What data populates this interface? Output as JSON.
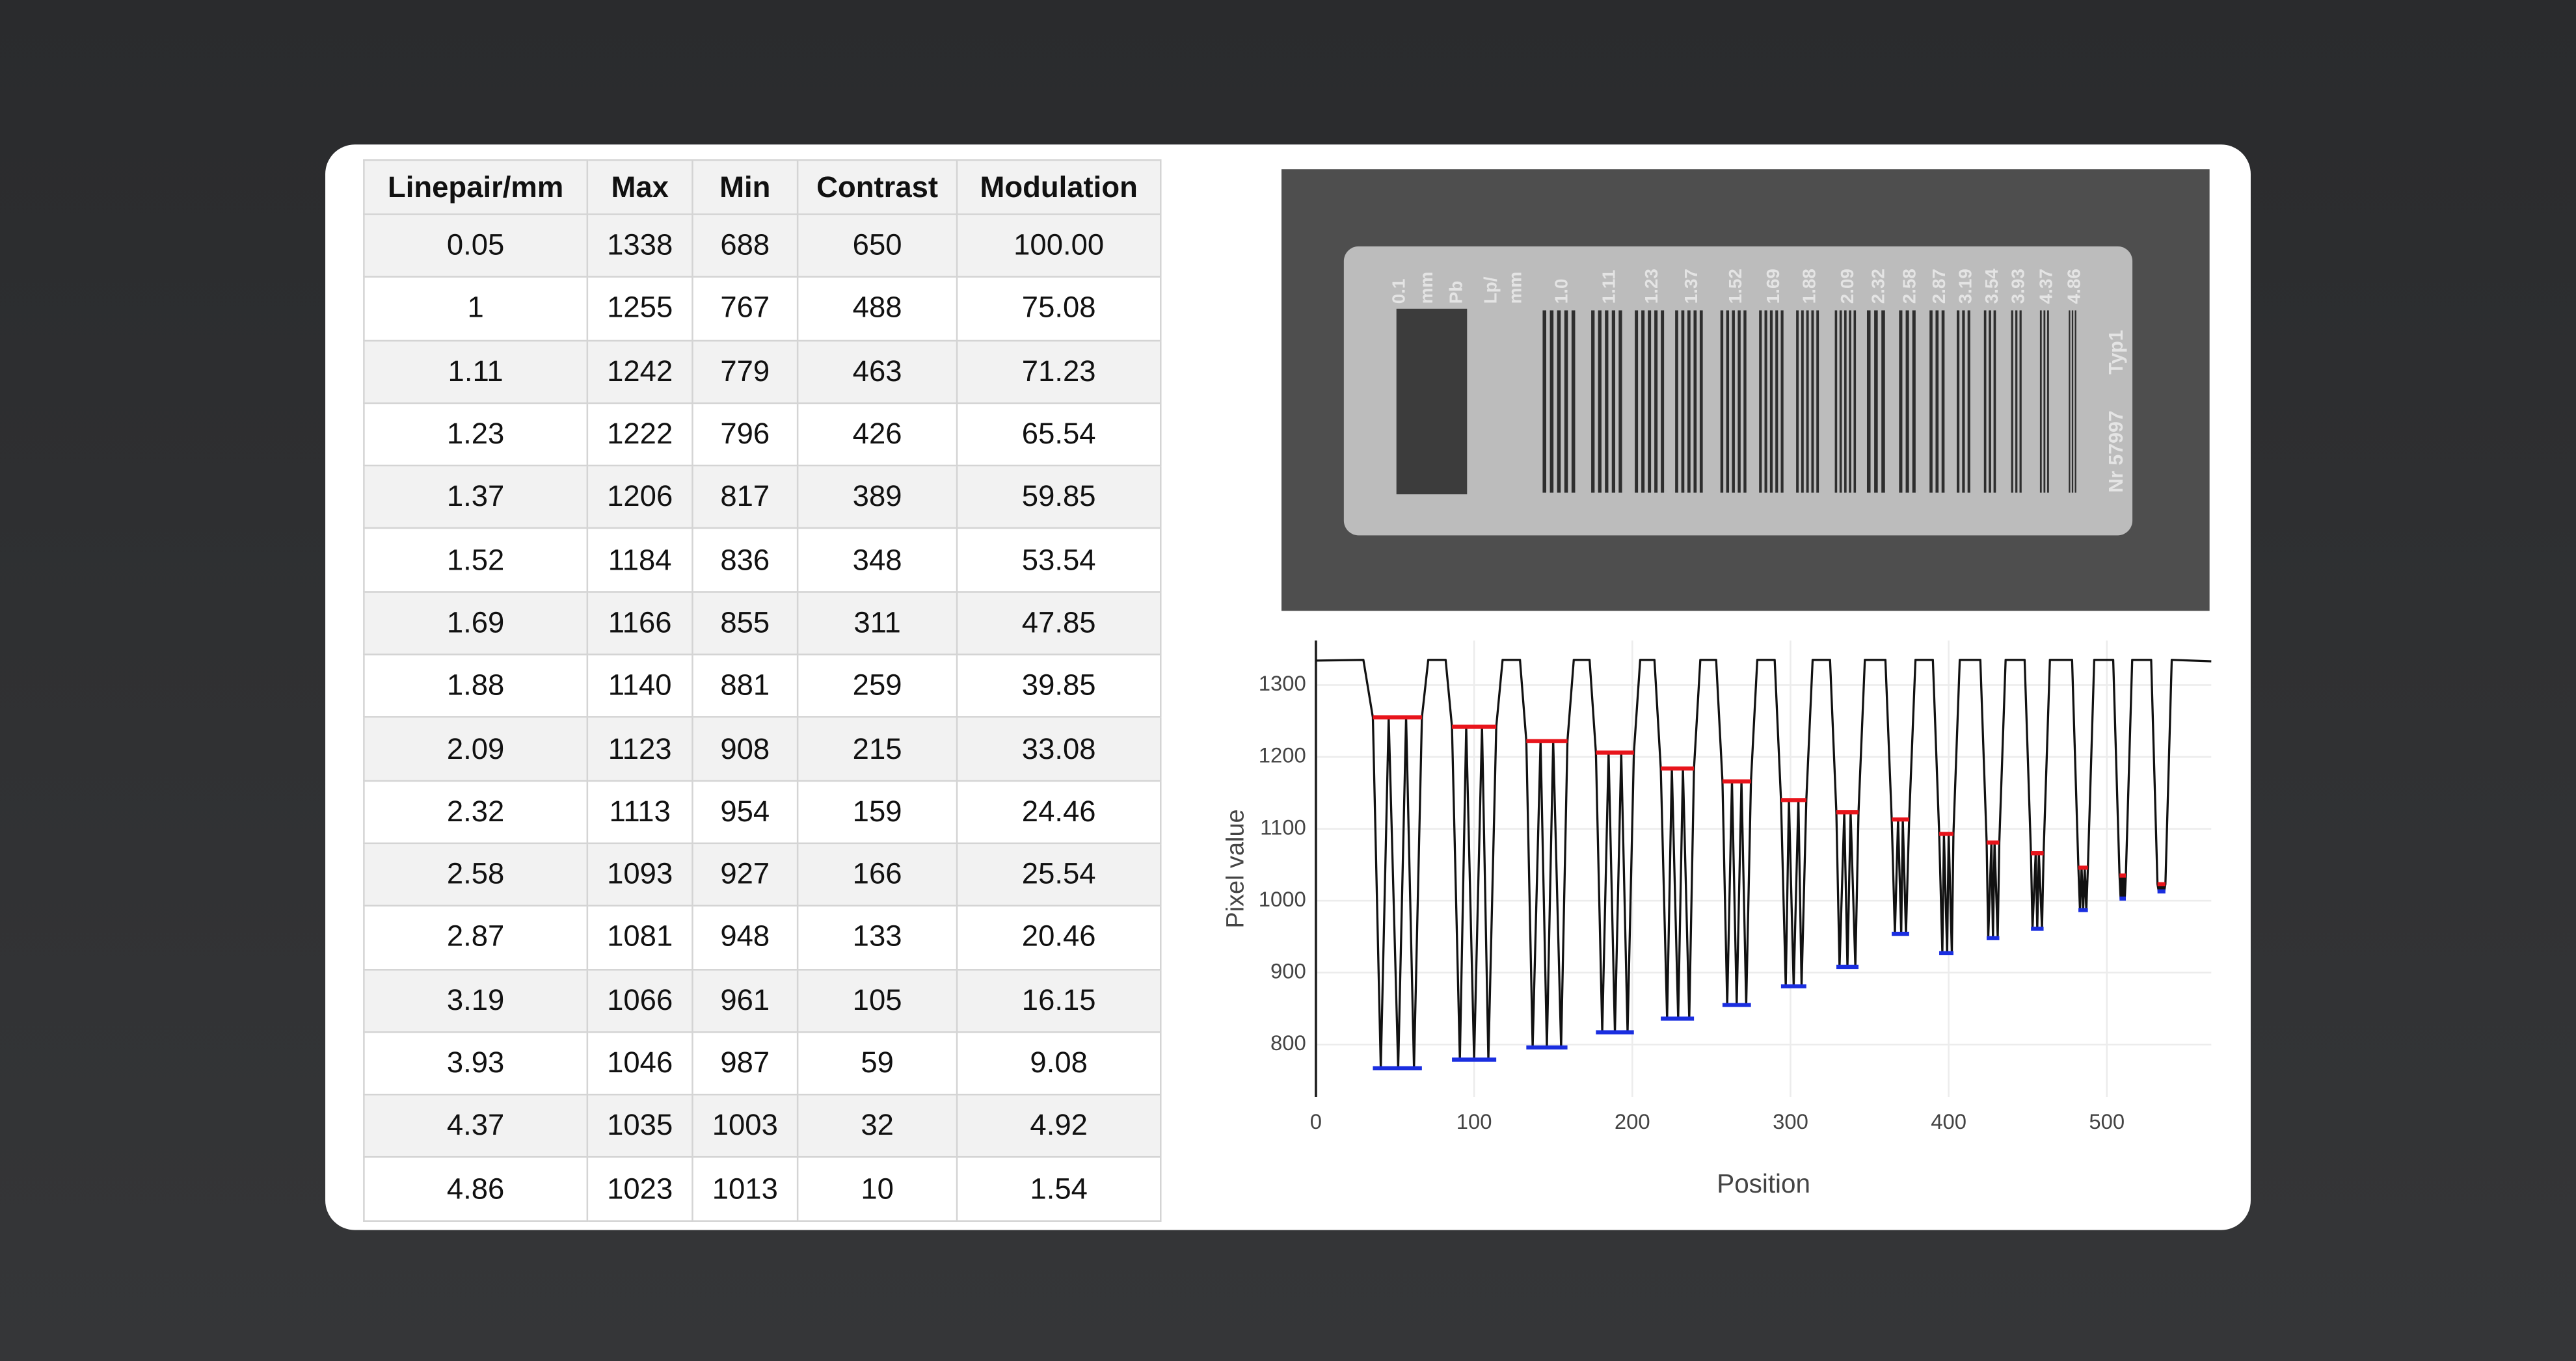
{
  "table": {
    "columns": [
      "Linepair/mm",
      "Max",
      "Min",
      "Contrast",
      "Modulation"
    ],
    "rows": [
      [
        "0.05",
        "1338",
        "688",
        "650",
        "100.00"
      ],
      [
        "1",
        "1255",
        "767",
        "488",
        "75.08"
      ],
      [
        "1.11",
        "1242",
        "779",
        "463",
        "71.23"
      ],
      [
        "1.23",
        "1222",
        "796",
        "426",
        "65.54"
      ],
      [
        "1.37",
        "1206",
        "817",
        "389",
        "59.85"
      ],
      [
        "1.52",
        "1184",
        "836",
        "348",
        "53.54"
      ],
      [
        "1.69",
        "1166",
        "855",
        "311",
        "47.85"
      ],
      [
        "1.88",
        "1140",
        "881",
        "259",
        "39.85"
      ],
      [
        "2.09",
        "1123",
        "908",
        "215",
        "33.08"
      ],
      [
        "2.32",
        "1113",
        "954",
        "159",
        "24.46"
      ],
      [
        "2.58",
        "1093",
        "927",
        "166",
        "25.54"
      ],
      [
        "2.87",
        "1081",
        "948",
        "133",
        "20.46"
      ],
      [
        "3.19",
        "1066",
        "961",
        "105",
        "16.15"
      ],
      [
        "3.93",
        "1046",
        "987",
        "59",
        "9.08"
      ],
      [
        "4.37",
        "1035",
        "1003",
        "32",
        "4.92"
      ],
      [
        "4.86",
        "1023",
        "1013",
        "10",
        "1.54"
      ]
    ]
  },
  "image": {
    "plate_labels": [
      "0.1",
      "mm",
      "Pb",
      "Lp/",
      "mm"
    ],
    "lp_labels": [
      "1.0",
      "1.11",
      "1.23",
      "1.37",
      "1.52",
      "1.69",
      "1.88",
      "2.09",
      "2.32",
      "2.58",
      "2.87",
      "3.19",
      "3.54",
      "3.93",
      "4.37",
      "4.86"
    ],
    "serial": "Nr 57997",
    "model": "Typ1"
  },
  "chart_data": {
    "type": "line",
    "x_label": "Position",
    "y_label": "Pixel value",
    "xlim": [
      0,
      566
    ],
    "ylim": [
      727,
      1362
    ],
    "xticks": [
      0,
      100,
      200,
      300,
      400,
      500
    ],
    "yticks": [
      800,
      900,
      1000,
      1100,
      1200,
      1300
    ],
    "grid": true,
    "x": [
      0,
      30,
      36,
      41,
      46,
      52,
      57,
      62,
      67,
      71,
      82,
      86,
      91,
      95,
      100,
      105,
      109,
      114,
      118,
      129,
      133,
      137,
      142,
      146,
      150,
      155,
      159,
      163,
      173,
      177,
      181,
      185,
      189,
      193,
      197,
      201,
      205,
      214,
      218,
      222,
      225,
      229,
      232,
      236,
      239,
      243,
      253,
      257,
      260,
      263,
      266,
      269,
      272,
      275,
      279,
      290,
      294,
      297,
      299,
      302,
      305,
      307,
      310,
      314,
      325,
      329,
      331,
      334,
      336,
      338,
      341,
      343,
      347,
      360,
      364,
      366,
      368,
      370,
      371,
      373,
      375,
      379,
      390,
      394,
      396,
      397,
      399,
      400,
      402,
      403,
      407,
      420,
      424,
      425,
      427,
      428,
      429,
      431,
      432,
      436,
      448,
      452,
      453,
      455,
      456,
      457,
      459,
      460,
      464,
      478,
      482,
      483,
      484,
      485,
      486,
      487,
      488,
      492,
      504,
      508,
      508.7,
      509.3,
      510,
      510.7,
      511.3,
      512,
      516,
      528,
      532,
      532.8,
      533.7,
      534.5,
      535.3,
      536.2,
      537,
      541,
      566
    ],
    "series": [
      {
        "color": "#111111",
        "values": [
          1334,
          1335,
          1255,
          767,
          1255,
          767,
          1255,
          767,
          1255,
          1335,
          1335,
          1242,
          779,
          1242,
          779,
          1242,
          779,
          1242,
          1335,
          1335,
          1222,
          796,
          1222,
          796,
          1222,
          796,
          1222,
          1335,
          1335,
          1206,
          817,
          1206,
          817,
          1206,
          817,
          1206,
          1335,
          1335,
          1184,
          836,
          1184,
          836,
          1184,
          836,
          1184,
          1335,
          1335,
          1166,
          855,
          1166,
          855,
          1166,
          855,
          1166,
          1335,
          1335,
          1140,
          881,
          1140,
          881,
          1140,
          881,
          1140,
          1335,
          1335,
          1123,
          908,
          1123,
          908,
          1123,
          908,
          1123,
          1335,
          1335,
          1113,
          954,
          1113,
          954,
          1113,
          954,
          1113,
          1335,
          1335,
          1093,
          927,
          1093,
          927,
          1093,
          927,
          1093,
          1335,
          1335,
          1081,
          948,
          1081,
          948,
          1081,
          948,
          1081,
          1335,
          1335,
          1066,
          961,
          1066,
          961,
          1066,
          961,
          1066,
          1335,
          1335,
          1046,
          987,
          1046,
          987,
          1046,
          987,
          1046,
          1335,
          1335,
          1035,
          1003,
          1035,
          1003,
          1035,
          1003,
          1035,
          1335,
          1335,
          1023,
          1013,
          1023,
          1013,
          1023,
          1013,
          1023,
          1335,
          1333
        ]
      }
    ],
    "marker_x_start": [
      36,
      86,
      133,
      177,
      218,
      257,
      294,
      329,
      364,
      394,
      424,
      452,
      482,
      508,
      532
    ],
    "marker_x_end": [
      67,
      114,
      159,
      201,
      239,
      275,
      310,
      343,
      375,
      403,
      432,
      460,
      488,
      512,
      537
    ],
    "max_markers": {
      "color": "#e8141b",
      "values": [
        1255,
        1242,
        1222,
        1206,
        1184,
        1166,
        1140,
        1123,
        1113,
        1093,
        1081,
        1066,
        1046,
        1035,
        1023
      ]
    },
    "min_markers": {
      "color": "#1a2ee0",
      "values": [
        767,
        779,
        796,
        817,
        836,
        855,
        881,
        908,
        954,
        927,
        948,
        961,
        987,
        1003,
        1013
      ]
    }
  }
}
